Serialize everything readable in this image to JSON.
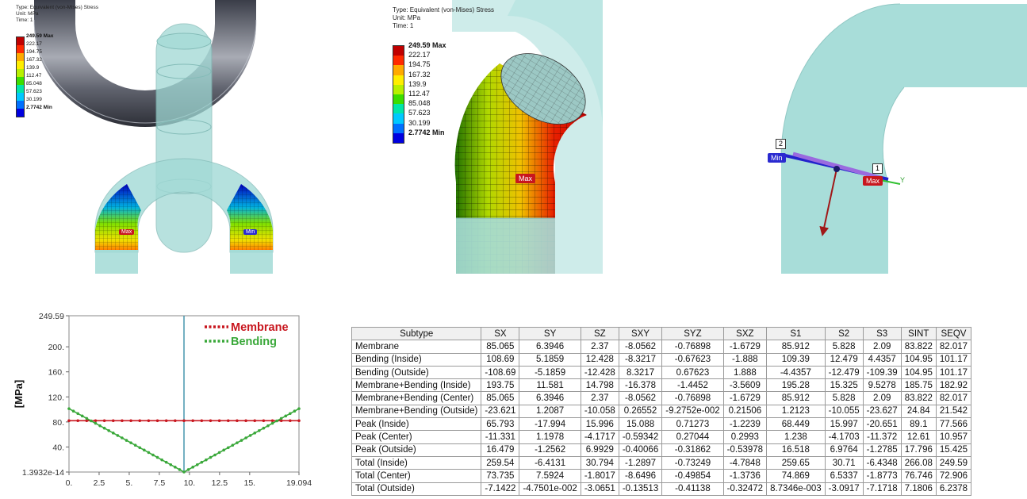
{
  "result_header": {
    "type": "Type: Equivalent (von-Mises) Stress",
    "unit": "Unit: MPa",
    "time": "Time: 1"
  },
  "legend": [
    {
      "label": "249.59 Max",
      "color": "#c00000"
    },
    {
      "label": "222.17",
      "color": "#ff2a00"
    },
    {
      "label": "194.75",
      "color": "#ffaa00"
    },
    {
      "label": "167.32",
      "color": "#ffee00"
    },
    {
      "label": "139.9",
      "color": "#b8f000"
    },
    {
      "label": "112.47",
      "color": "#3cde00"
    },
    {
      "label": "85.048",
      "color": "#00e6a8"
    },
    {
      "label": "57.623",
      "color": "#00c8ff"
    },
    {
      "label": "30.199",
      "color": "#0070ff"
    },
    {
      "label": "2.7742 Min",
      "color": "#0000e0"
    }
  ],
  "probe_tags": {
    "max": "Max",
    "min": "Min",
    "point1": "1",
    "point2": "2",
    "axis_y": "Y"
  },
  "chart_data": {
    "type": "line",
    "ylabel": "[MPa]",
    "xlim": [
      0,
      19.094
    ],
    "ylim": [
      1.3932e-14,
      249.59
    ],
    "x_ticks": [
      "0.",
      "2.5",
      "5.",
      "7.5",
      "10.",
      "12.5",
      "15.",
      "19.094"
    ],
    "y_ticks": [
      "249.59",
      "200.",
      "160.",
      "120.",
      "80.",
      "40.",
      "1.3932e-14"
    ],
    "marker_x": 9.547,
    "legend_position": "top-right",
    "series": [
      {
        "name": "Membrane",
        "color": "#c8161e",
        "x": [
          0,
          19.094
        ],
        "y": [
          82.017,
          82.017
        ]
      },
      {
        "name": "Bending",
        "color": "#3aa83a",
        "x": [
          0,
          9.547,
          19.094
        ],
        "y": [
          101.17,
          0,
          101.17
        ]
      }
    ]
  },
  "table": {
    "columns": [
      "Subtype",
      "SX",
      "SY",
      "SZ",
      "SXY",
      "SYZ",
      "SXZ",
      "S1",
      "S2",
      "S3",
      "SINT",
      "SEQV"
    ],
    "rows": [
      [
        "Membrane",
        "85.065",
        "6.3946",
        "2.37",
        "-8.0562",
        "-0.76898",
        "-1.6729",
        "85.912",
        "5.828",
        "2.09",
        "83.822",
        "82.017"
      ],
      [
        "Bending (Inside)",
        "108.69",
        "5.1859",
        "12.428",
        "-8.3217",
        "-0.67623",
        "-1.888",
        "109.39",
        "12.479",
        "4.4357",
        "104.95",
        "101.17"
      ],
      [
        "Bending (Outside)",
        "-108.69",
        "-5.1859",
        "-12.428",
        "8.3217",
        "0.67623",
        "1.888",
        "-4.4357",
        "-12.479",
        "-109.39",
        "104.95",
        "101.17"
      ],
      [
        "Membrane+Bending (Inside)",
        "193.75",
        "11.581",
        "14.798",
        "-16.378",
        "-1.4452",
        "-3.5609",
        "195.28",
        "15.325",
        "9.5278",
        "185.75",
        "182.92"
      ],
      [
        "Membrane+Bending (Center)",
        "85.065",
        "6.3946",
        "2.37",
        "-8.0562",
        "-0.76898",
        "-1.6729",
        "85.912",
        "5.828",
        "2.09",
        "83.822",
        "82.017"
      ],
      [
        "Membrane+Bending (Outside)",
        "-23.621",
        "1.2087",
        "-10.058",
        "0.26552",
        "-9.2752e-002",
        "0.21506",
        "1.2123",
        "-10.055",
        "-23.627",
        "24.84",
        "21.542"
      ],
      [
        "Peak (Inside)",
        "65.793",
        "-17.994",
        "15.996",
        "15.088",
        "0.71273",
        "-1.2239",
        "68.449",
        "15.997",
        "-20.651",
        "89.1",
        "77.566"
      ],
      [
        "Peak (Center)",
        "-11.331",
        "1.1978",
        "-4.1717",
        "-0.59342",
        "0.27044",
        "0.2993",
        "1.238",
        "-4.1703",
        "-11.372",
        "12.61",
        "10.957"
      ],
      [
        "Peak (Outside)",
        "16.479",
        "-1.2562",
        "6.9929",
        "-0.40066",
        "-0.31862",
        "-0.53978",
        "16.518",
        "6.9764",
        "-1.2785",
        "17.796",
        "15.425"
      ],
      [
        "Total (Inside)",
        "259.54",
        "-6.4131",
        "30.794",
        "-1.2897",
        "-0.73249",
        "-4.7848",
        "259.65",
        "30.71",
        "-6.4348",
        "266.08",
        "249.59"
      ],
      [
        "Total (Center)",
        "73.735",
        "7.5924",
        "-1.8017",
        "-8.6496",
        "-0.49854",
        "-1.3736",
        "74.869",
        "6.5337",
        "-1.8773",
        "76.746",
        "72.906"
      ],
      [
        "Total (Outside)",
        "-7.1422",
        "-4.7501e-002",
        "-3.0651",
        "-0.13513",
        "-0.41138",
        "-0.32472",
        "8.7346e-003",
        "-3.0917",
        "-7.1718",
        "7.1806",
        "6.2378"
      ]
    ]
  }
}
